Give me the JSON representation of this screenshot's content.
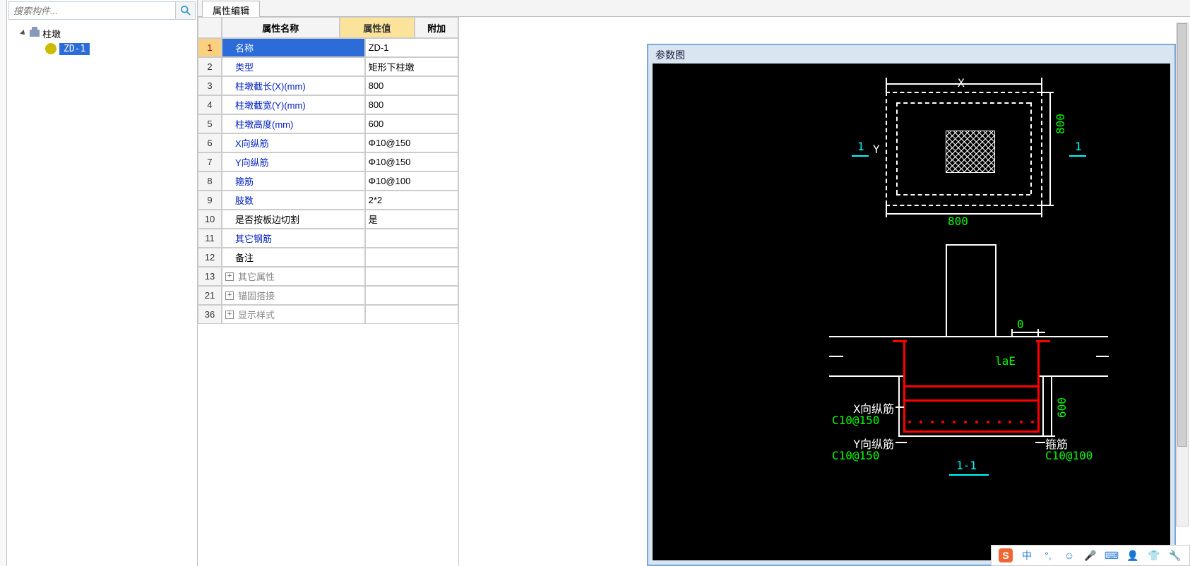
{
  "sidebar": {
    "search_placeholder": "搜索构件...",
    "root_label": "柱墩",
    "child_label": "ZD-1"
  },
  "tabs": {
    "active": "属性编辑"
  },
  "grid": {
    "headers": {
      "name": "属性名称",
      "value": "属性值",
      "extra": "附加"
    },
    "rows": [
      {
        "n": "1",
        "name": "名称",
        "val": "ZD-1",
        "selected": true,
        "style": "sel"
      },
      {
        "n": "2",
        "name": "类型",
        "val": "矩形下柱墩",
        "style": "blue"
      },
      {
        "n": "3",
        "name": "柱墩截长(X)(mm)",
        "val": "800",
        "style": "blue"
      },
      {
        "n": "4",
        "name": "柱墩截宽(Y)(mm)",
        "val": "800",
        "style": "blue"
      },
      {
        "n": "5",
        "name": "柱墩高度(mm)",
        "val": "600",
        "style": "blue"
      },
      {
        "n": "6",
        "name": "X向纵筋",
        "val": "Φ10@150",
        "style": "blue"
      },
      {
        "n": "7",
        "name": "Y向纵筋",
        "val": "Φ10@150",
        "style": "blue"
      },
      {
        "n": "8",
        "name": "箍筋",
        "val": "Φ10@100",
        "style": "blue"
      },
      {
        "n": "9",
        "name": "肢数",
        "val": "2*2",
        "style": "blue"
      },
      {
        "n": "10",
        "name": "是否按板边切割",
        "val": "是",
        "style": "black"
      },
      {
        "n": "11",
        "name": "其它钢筋",
        "val": "",
        "style": "blue"
      },
      {
        "n": "12",
        "name": "备注",
        "val": "",
        "style": "black"
      },
      {
        "n": "13",
        "name": "其它属性",
        "val": "",
        "style": "gray",
        "expand": true
      },
      {
        "n": "21",
        "name": "锚固搭接",
        "val": "",
        "style": "gray",
        "expand": true
      },
      {
        "n": "36",
        "name": "显示样式",
        "val": "",
        "style": "gray",
        "expand": true
      }
    ]
  },
  "diagram": {
    "title": "参数图",
    "top": {
      "x_label": "X",
      "y_label": "Y",
      "dim_right": "800",
      "dim_bottom": "800",
      "sec_left": "1",
      "sec_right": "1"
    },
    "bottom": {
      "zero": "0",
      "laE": "laE",
      "h": "600",
      "x_label": "X向纵筋",
      "x_spec": "C10@150",
      "y_label": "Y向纵筋",
      "y_spec": "C10@150",
      "stirrup_label": "箍筋",
      "stirrup_spec": "C10@100",
      "section": "1-1"
    }
  },
  "ime": {
    "brand": "S",
    "lang": "中"
  }
}
